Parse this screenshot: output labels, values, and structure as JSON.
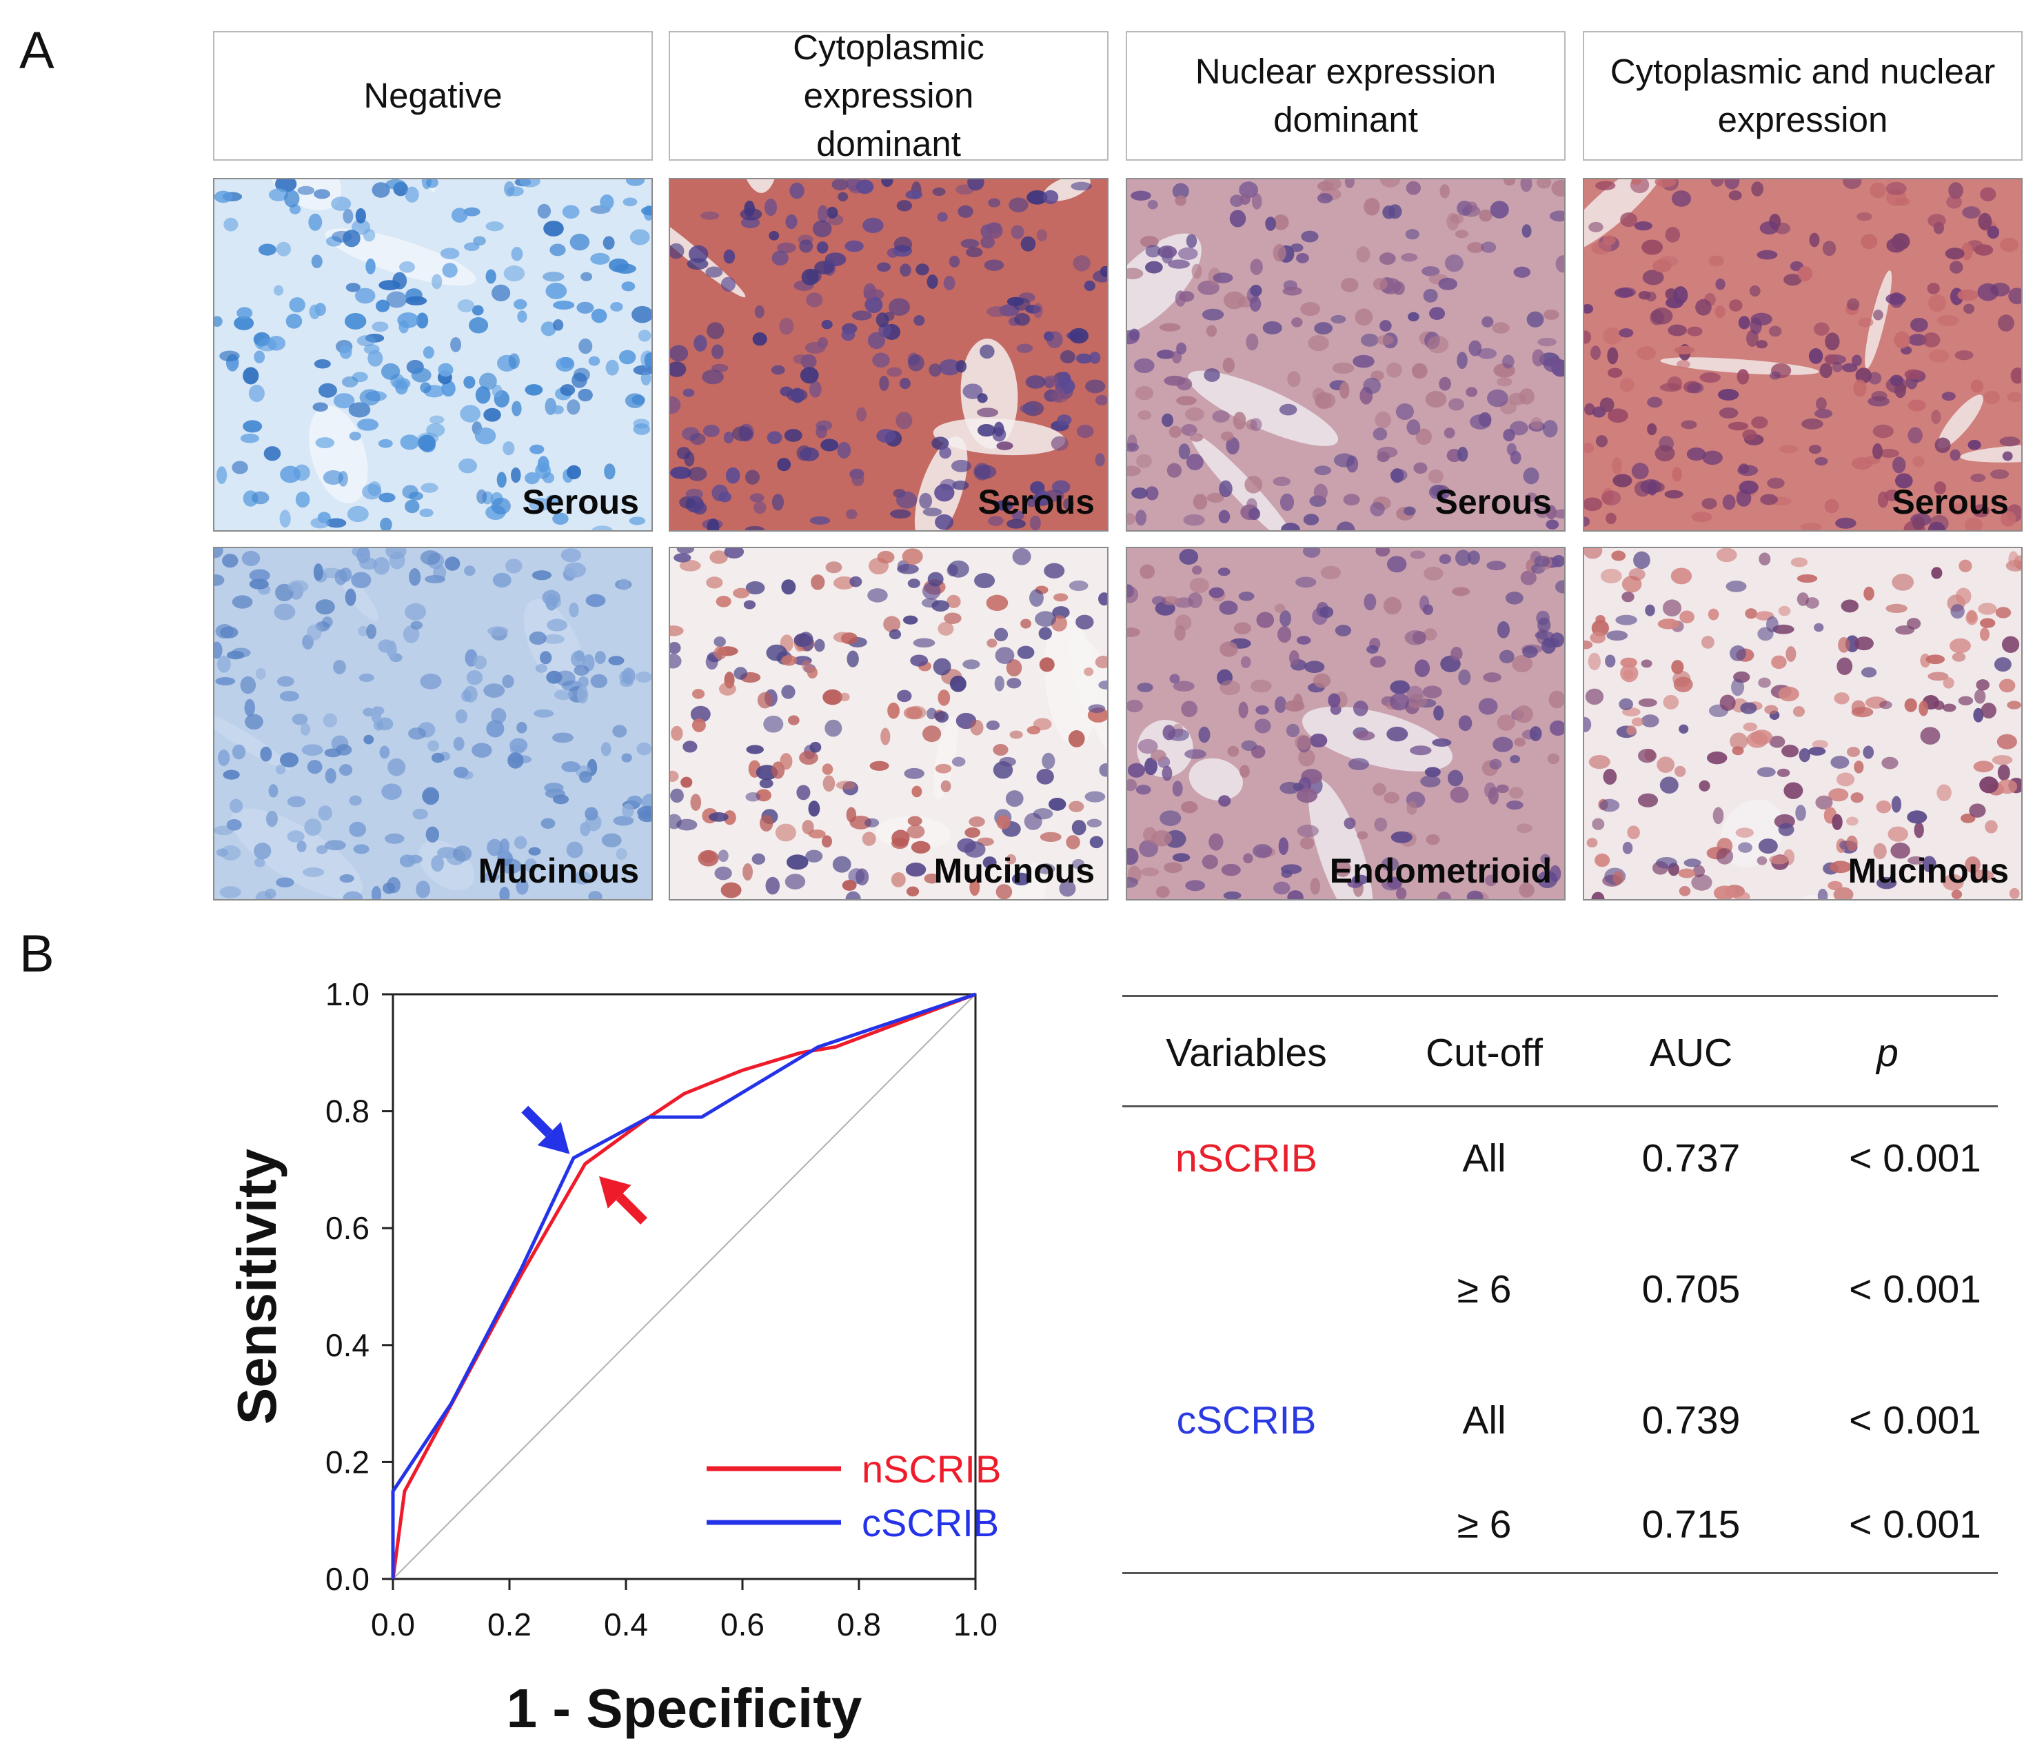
{
  "panel_a": {
    "letter": "A",
    "headers": [
      "Negative",
      "Cytoplasmic expression dominant",
      "Nuclear expression dominant",
      "Cytoplasmic and nuclear expression"
    ],
    "row1_tags": [
      "Serous",
      "Serous",
      "Serous",
      "Serous"
    ],
    "row2_tags": [
      "Mucinous",
      "Mucinous",
      "Endometrioid",
      "Mucinous"
    ],
    "stain_colors": {
      "negative": "#5b93d0",
      "positive": "#c8645c",
      "nucleus": "#4a4a8a",
      "background": "#e9eef4"
    }
  },
  "panel_b": {
    "letter": "B",
    "table": {
      "headers": [
        "Variables",
        "Cut-off",
        "AUC",
        "p"
      ],
      "rows": [
        {
          "variable": "nSCRIB",
          "cutoff": "All",
          "auc": "0.737",
          "p": "< 0.001"
        },
        {
          "variable": "",
          "cutoff": "≥ 6",
          "auc": "0.705",
          "p": "< 0.001"
        },
        {
          "variable": "cSCRIB",
          "cutoff": "All",
          "auc": "0.739",
          "p": "< 0.001"
        },
        {
          "variable": "",
          "cutoff": "≥ 6",
          "auc": "0.715",
          "p": "< 0.001"
        }
      ]
    }
  },
  "chart_data": {
    "type": "line",
    "xlabel": "1 - Specificity",
    "ylabel": "Sensitivity",
    "xlim": [
      0,
      1
    ],
    "ylim": [
      0,
      1
    ],
    "xticks": [
      "0.0",
      "0.2",
      "0.4",
      "0.6",
      "0.8",
      "1.0"
    ],
    "yticks": [
      "0.0",
      "0.2",
      "0.4",
      "0.6",
      "0.8",
      "1.0"
    ],
    "grid": false,
    "legend_position": "bottom-right",
    "reference_line": {
      "x": [
        0,
        1
      ],
      "y": [
        0,
        1
      ],
      "color": "#b0b0b0"
    },
    "series": [
      {
        "name": "nSCRIB",
        "color": "#ee1c2b",
        "x": [
          0,
          0.02,
          0.22,
          0.33,
          0.44,
          0.5,
          0.6,
          0.7,
          0.76,
          1.0
        ],
        "y": [
          0,
          0.15,
          0.52,
          0.71,
          0.79,
          0.83,
          0.87,
          0.9,
          0.91,
          1.0
        ]
      },
      {
        "name": "cSCRIB",
        "color": "#2433e8",
        "x": [
          0,
          0,
          0.1,
          0.22,
          0.31,
          0.44,
          0.53,
          0.68,
          0.73,
          1.0
        ],
        "y": [
          0,
          0.15,
          0.3,
          0.53,
          0.72,
          0.79,
          0.79,
          0.88,
          0.91,
          1.0
        ]
      }
    ],
    "annotations": [
      {
        "type": "arrow",
        "color": "#2433e8",
        "target": [
          0.31,
          0.72
        ]
      },
      {
        "type": "arrow",
        "color": "#ee1c2b",
        "target": [
          0.34,
          0.7
        ]
      }
    ]
  }
}
